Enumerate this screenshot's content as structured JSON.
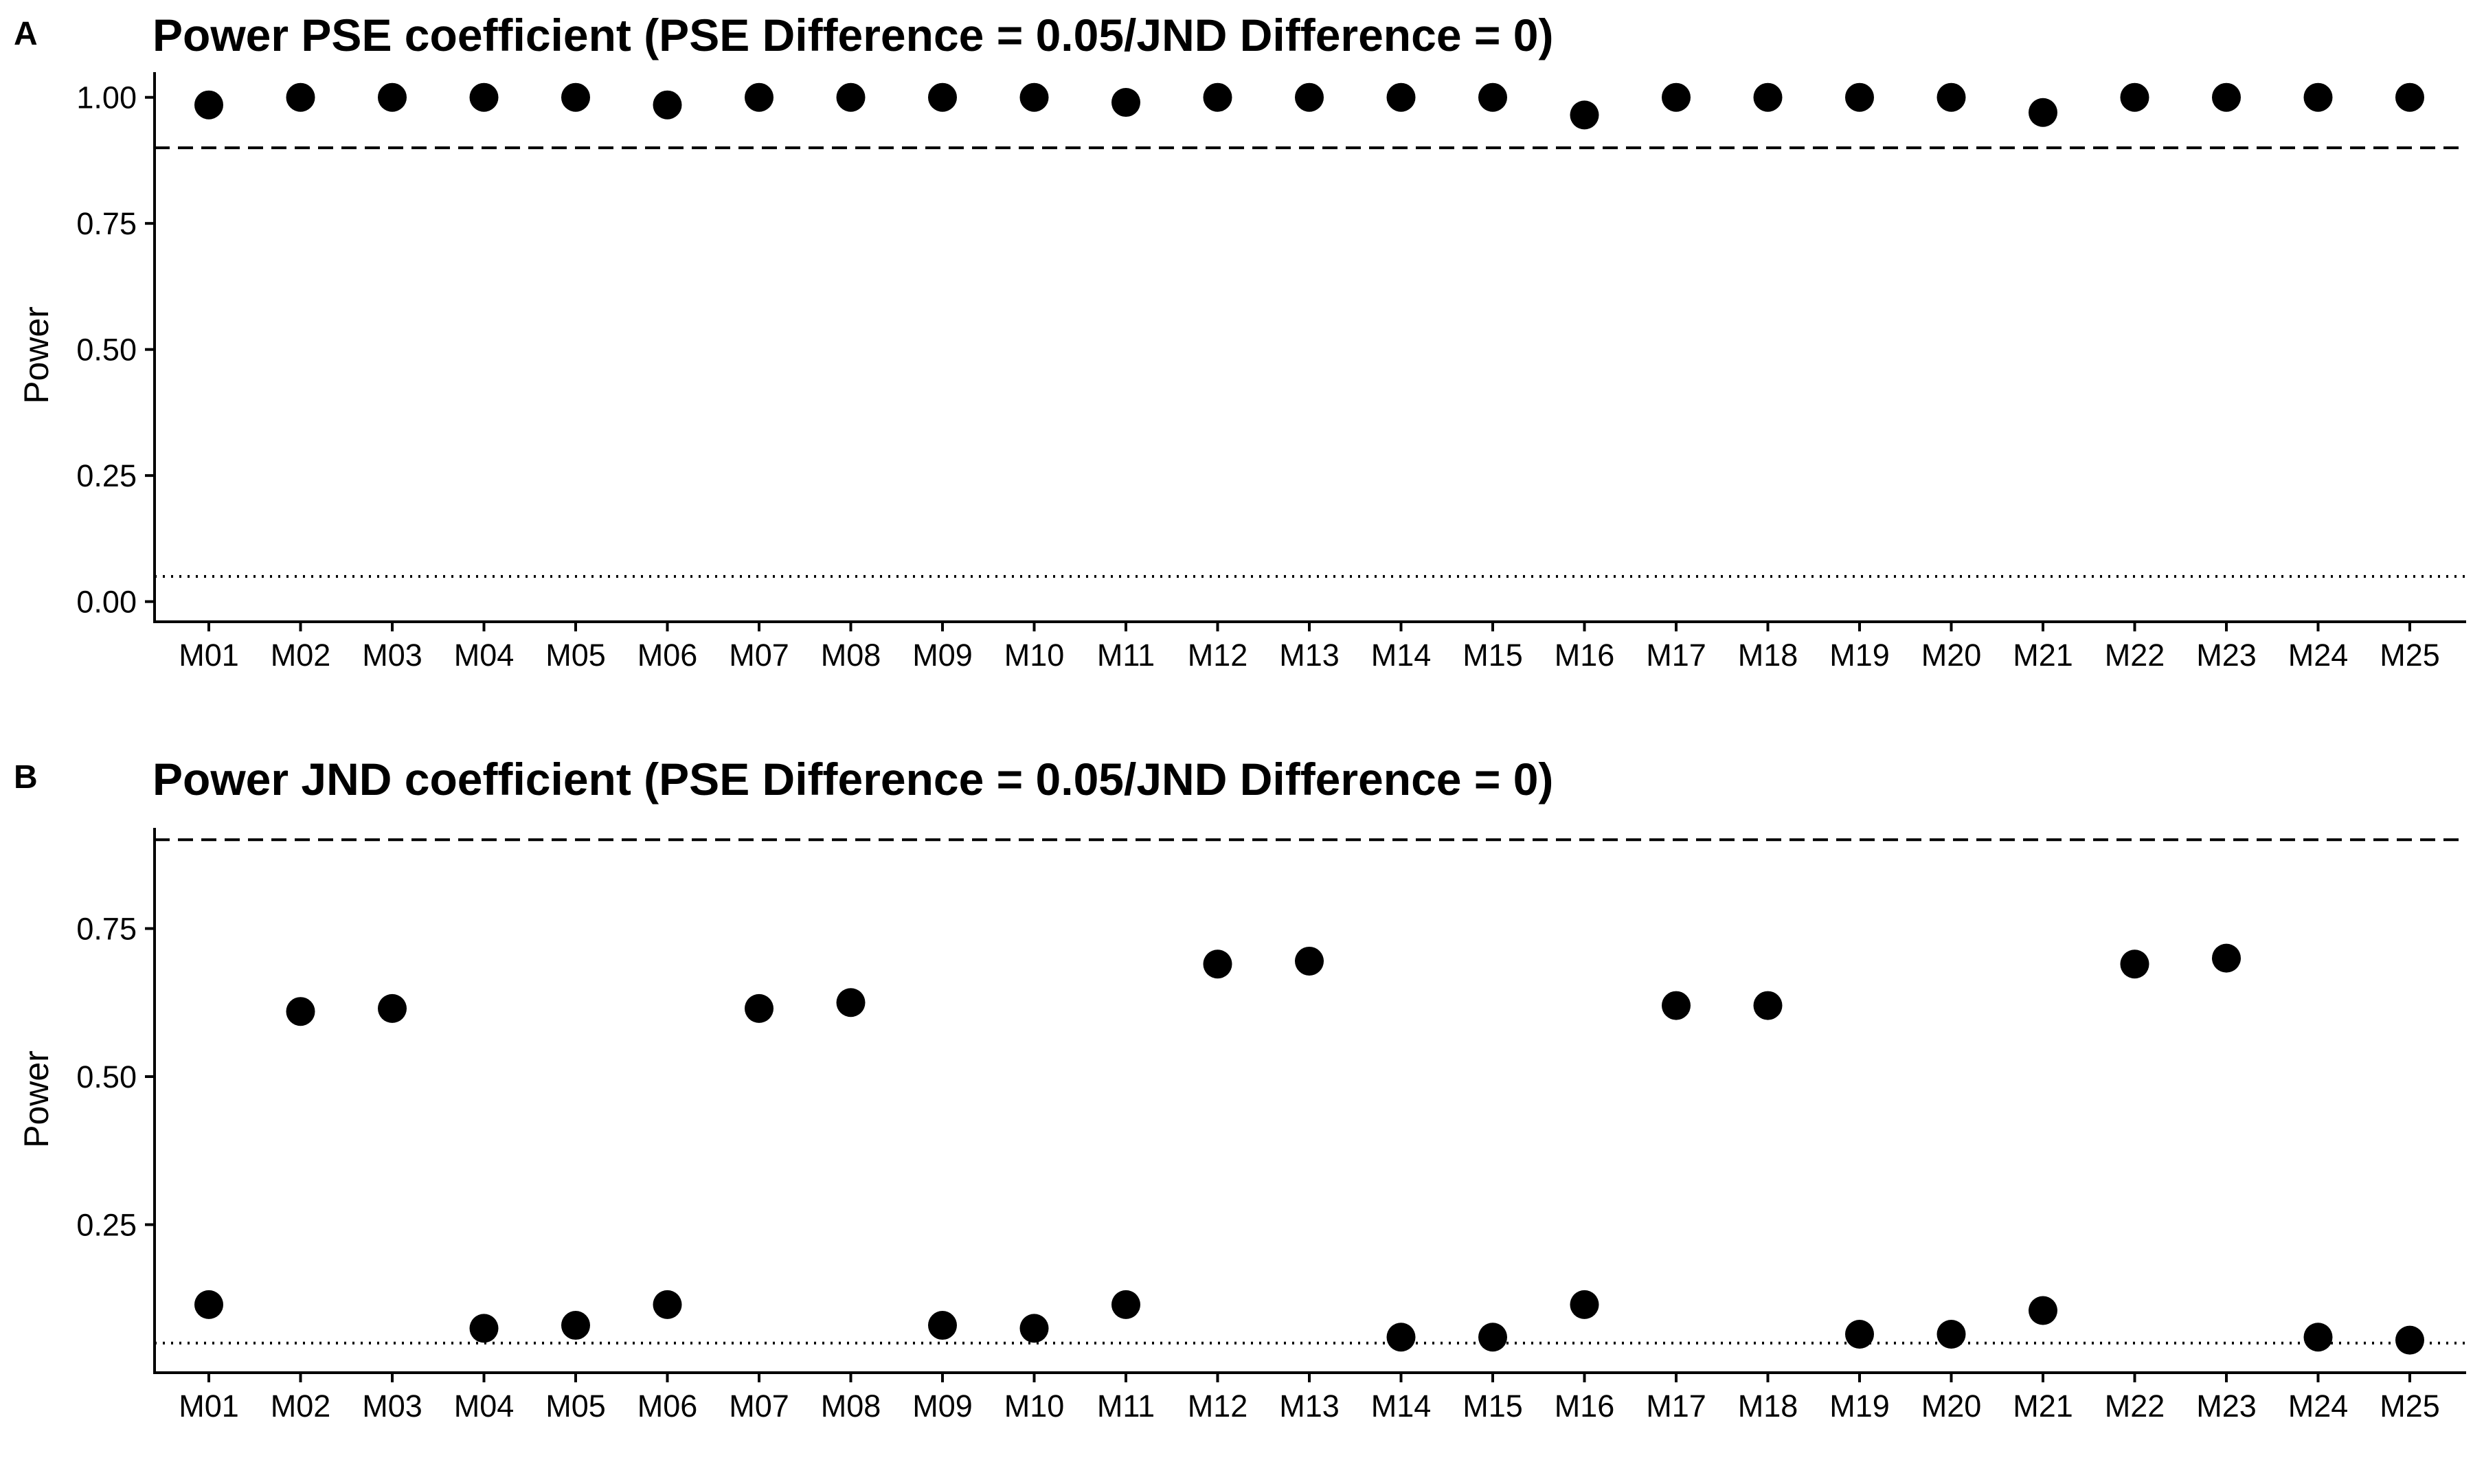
{
  "chart_data": [
    {
      "type": "scatter",
      "panel_label": "A",
      "title": "Power PSE coefficient (PSE Difference = 0.05/JND Difference = 0)",
      "xlabel": "",
      "ylabel": "Power",
      "ylim": [
        -0.04,
        1.05
      ],
      "yticks": [
        0.0,
        0.25,
        0.5,
        0.75,
        1.0
      ],
      "ytick_labels": [
        "0.00",
        "0.25",
        "0.50",
        "0.75",
        "1.00"
      ],
      "reference_lines": [
        {
          "y": 0.9,
          "style": "dashed"
        },
        {
          "y": 0.05,
          "style": "dotted"
        }
      ],
      "grid": false,
      "categories": [
        "M01",
        "M02",
        "M03",
        "M04",
        "M05",
        "M06",
        "M07",
        "M08",
        "M09",
        "M10",
        "M11",
        "M12",
        "M13",
        "M14",
        "M15",
        "M16",
        "M17",
        "M18",
        "M19",
        "M20",
        "M21",
        "M22",
        "M23",
        "M24",
        "M25"
      ],
      "values": [
        0.985,
        1.0,
        1.0,
        1.0,
        1.0,
        0.985,
        1.0,
        1.0,
        1.0,
        1.0,
        0.99,
        1.0,
        1.0,
        1.0,
        1.0,
        0.965,
        1.0,
        1.0,
        1.0,
        1.0,
        0.97,
        1.0,
        1.0,
        1.0,
        1.0
      ]
    },
    {
      "type": "scatter",
      "panel_label": "B",
      "title": "Power JND coefficient (PSE Difference = 0.05/JND Difference = 0)",
      "xlabel": "",
      "ylabel": "Power",
      "ylim": [
        0.0,
        0.92
      ],
      "yticks": [
        0.25,
        0.5,
        0.75
      ],
      "ytick_labels": [
        "0.25",
        "0.50",
        "0.75"
      ],
      "reference_lines": [
        {
          "y": 0.9,
          "style": "dashed"
        },
        {
          "y": 0.05,
          "style": "dotted"
        }
      ],
      "grid": false,
      "categories": [
        "M01",
        "M02",
        "M03",
        "M04",
        "M05",
        "M06",
        "M07",
        "M08",
        "M09",
        "M10",
        "M11",
        "M12",
        "M13",
        "M14",
        "M15",
        "M16",
        "M17",
        "M18",
        "M19",
        "M20",
        "M21",
        "M22",
        "M23",
        "M24",
        "M25"
      ],
      "values": [
        0.115,
        0.61,
        0.615,
        0.075,
        0.08,
        0.115,
        0.615,
        0.625,
        0.08,
        0.075,
        0.115,
        0.69,
        0.695,
        0.06,
        0.06,
        0.115,
        0.62,
        0.62,
        0.065,
        0.065,
        0.105,
        0.69,
        0.7,
        0.06,
        0.055
      ]
    }
  ]
}
